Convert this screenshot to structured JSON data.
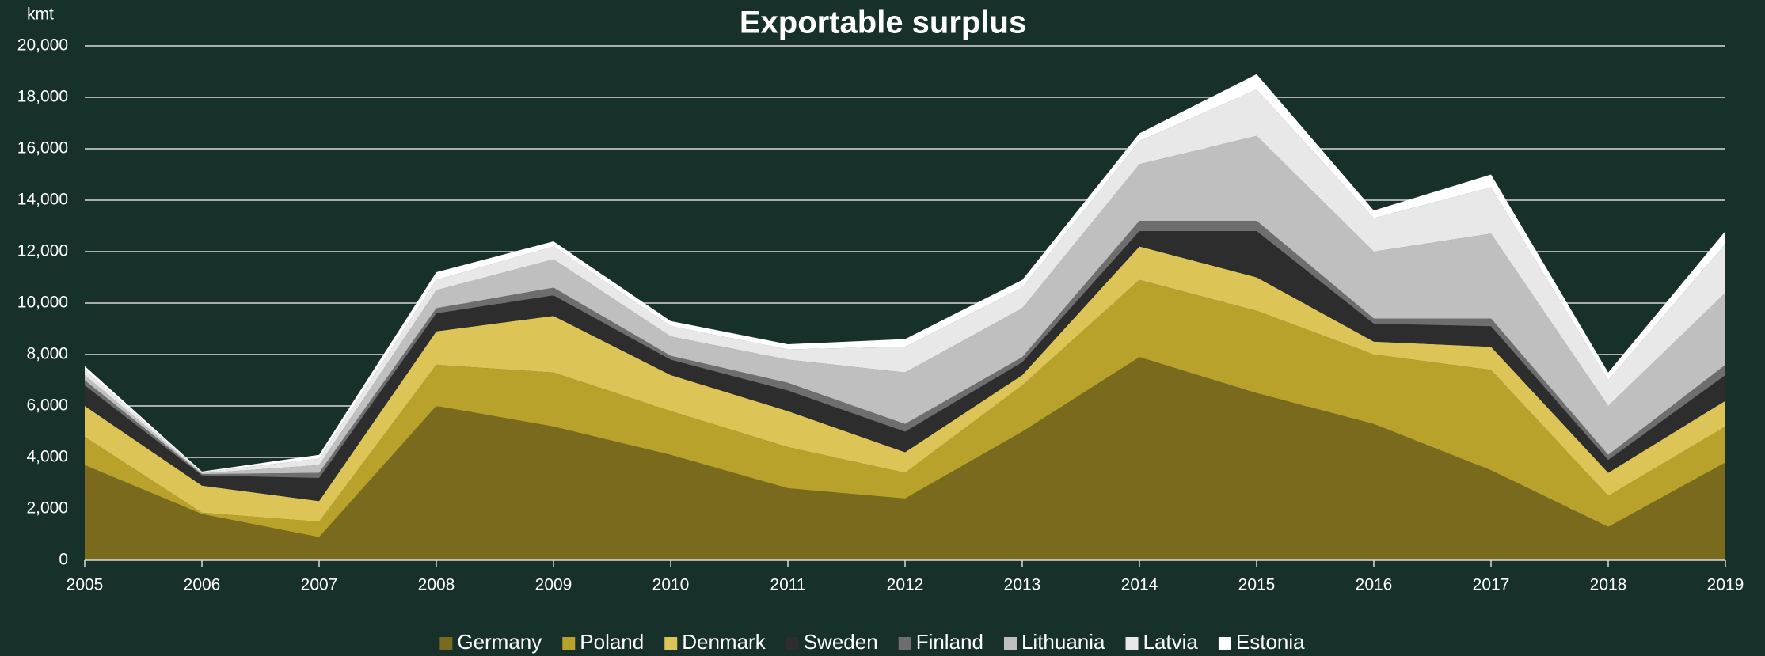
{
  "chart_data": {
    "type": "stacked_area",
    "title": "Exportable surplus",
    "ylabel": "kmt",
    "x": [
      2005,
      2006,
      2007,
      2008,
      2009,
      2010,
      2011,
      2012,
      2013,
      2014,
      2015,
      2016,
      2017,
      2018,
      2019
    ],
    "xlim": [
      2005,
      2019
    ],
    "xticks": [
      2005,
      2006,
      2007,
      2008,
      2009,
      2010,
      2011,
      2012,
      2013,
      2014,
      2015,
      2016,
      2017,
      2018,
      2019
    ],
    "ylim": [
      0,
      20000
    ],
    "yticks": [
      0,
      {
        "value": 2000,
        "label": "2,000"
      },
      {
        "value": 4000,
        "label": "4,000"
      },
      {
        "value": 6000,
        "label": "6,000"
      },
      {
        "value": 8000,
        "label": "8,000"
      },
      {
        "value": 10000,
        "label": "10,000"
      },
      {
        "value": 12000,
        "label": "12,000"
      },
      {
        "value": 14000,
        "label": "14,000"
      },
      {
        "value": 16000,
        "label": "16,000"
      },
      {
        "value": 18000,
        "label": "18,000"
      },
      {
        "value": 20000,
        "label": "20,000"
      }
    ],
    "grid": true,
    "legend": "bottom",
    "series": [
      {
        "name": "Germany",
        "color": "#7a6a1e",
        "values": [
          3700,
          1800,
          900,
          6000,
          5200,
          4100,
          2800,
          2400,
          5000,
          7900,
          6500,
          5300,
          3500,
          1300,
          3800
        ]
      },
      {
        "name": "Poland",
        "color": "#b9a22b",
        "values": [
          1100,
          50,
          600,
          1600,
          2100,
          1700,
          1600,
          1000,
          1800,
          3000,
          3200,
          2700,
          3900,
          1200,
          1400
        ]
      },
      {
        "name": "Denmark",
        "color": "#dcc456",
        "values": [
          1200,
          1050,
          800,
          1300,
          2200,
          1400,
          1400,
          800,
          400,
          1300,
          1300,
          500,
          900,
          900,
          1000
        ]
      },
      {
        "name": "Sweden",
        "color": "#2d2d2d",
        "values": [
          800,
          400,
          900,
          700,
          800,
          600,
          800,
          800,
          500,
          600,
          1800,
          700,
          800,
          500,
          1000
        ]
      },
      {
        "name": "Finland",
        "color": "#6e6e6e",
        "values": [
          200,
          50,
          200,
          200,
          300,
          150,
          300,
          300,
          200,
          400,
          400,
          200,
          300,
          200,
          400
        ]
      },
      {
        "name": "Lithuania",
        "color": "#bfbfbf",
        "values": [
          200,
          30,
          300,
          700,
          1100,
          750,
          900,
          2000,
          1900,
          2200,
          3300,
          2600,
          3300,
          1900,
          2800
        ]
      },
      {
        "name": "Latvia",
        "color": "#e8e8e8",
        "values": [
          200,
          40,
          250,
          400,
          500,
          400,
          400,
          1000,
          800,
          900,
          1800,
          1300,
          1800,
          1000,
          1900
        ]
      },
      {
        "name": "Estonia",
        "color": "#ffffff",
        "values": [
          150,
          30,
          150,
          300,
          200,
          200,
          200,
          300,
          300,
          300,
          600,
          300,
          500,
          300,
          500
        ]
      }
    ]
  }
}
